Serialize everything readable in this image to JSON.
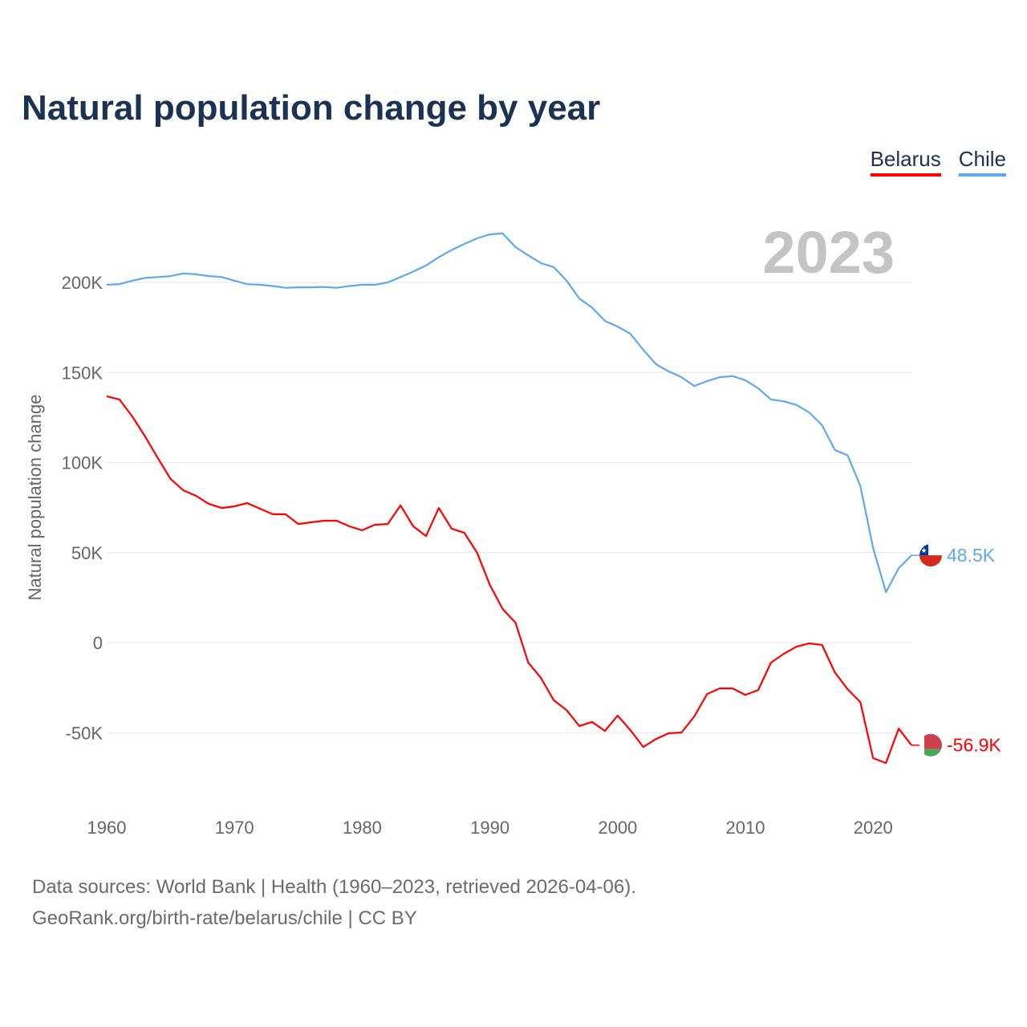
{
  "title": "Natural population change by year",
  "footer": {
    "line1": "Data sources: World Bank | Health (1960–2023, retrieved 2026-04-06).",
    "line2": "GeoRank.org/birth-rate/belarus/chile | CC BY"
  },
  "chart_data": {
    "type": "line",
    "title": "Natural population change by year",
    "xlabel": "",
    "ylabel": "Natural population change",
    "year_label": "2023",
    "xlim": [
      1960,
      2023
    ],
    "ylim": [
      -75000,
      235000
    ],
    "x_ticks": [
      1960,
      1970,
      1980,
      1990,
      2000,
      2010,
      2020
    ],
    "y_ticks": [
      {
        "value": 200000,
        "label": "200K"
      },
      {
        "value": 150000,
        "label": "150K"
      },
      {
        "value": 100000,
        "label": "100K"
      },
      {
        "value": 50000,
        "label": "50K"
      },
      {
        "value": 0,
        "label": "0"
      },
      {
        "value": -50000,
        "label": "-50K"
      }
    ],
    "grid": true,
    "legend_position": "top-right",
    "x_start": 1960,
    "series": [
      {
        "name": "Belarus",
        "color": "#ff0000",
        "flag": "belarus-flag-icon",
        "end_label": "-56.9K",
        "values": [
          136.8,
          135,
          125.6,
          114.5,
          102.5,
          90.9,
          84.6,
          81.5,
          77,
          74.8,
          75.7,
          77.5,
          74.4,
          71.3,
          71.3,
          65.9,
          66.8,
          67.7,
          67.7,
          64.6,
          62.4,
          65.5,
          65.9,
          76.2,
          64.6,
          59.2,
          74.8,
          63.3,
          61,
          49.9,
          32,
          18.7,
          11.1,
          -11.1,
          -19.6,
          -32,
          -37.4,
          -46.3,
          -44,
          -49,
          -40.5,
          -48.6,
          -57.9,
          -53.5,
          -50.3,
          -49.9,
          -41,
          -28.5,
          -25.4,
          -25.4,
          -29,
          -26.3,
          -11.1,
          -6.2,
          -2.2,
          -0.4,
          -1.3,
          -16.5,
          -25.8,
          -33,
          -64.1,
          -66.8,
          -47.7,
          -56.9
        ]
      },
      {
        "name": "Chile",
        "color": "#5ea9ee",
        "flag": "chile-flag-icon",
        "end_label": "48.5K",
        "values": [
          198.7,
          199,
          201,
          202.5,
          203,
          203.5,
          205,
          204.5,
          203.5,
          203,
          201,
          199,
          198.7,
          198,
          197,
          197.3,
          197.3,
          197.5,
          197,
          198,
          198.7,
          198.7,
          200,
          203,
          206,
          209.4,
          214,
          218,
          221.4,
          224.5,
          226.7,
          227.2,
          219.6,
          215,
          210.7,
          208.5,
          201,
          191,
          186,
          178.6,
          175.5,
          171.5,
          162.6,
          154.6,
          150.6,
          147.4,
          142.5,
          145.2,
          147.4,
          148,
          145.7,
          141.2,
          135,
          134,
          132,
          127.8,
          120.7,
          107,
          104,
          87,
          52.6,
          28,
          41.4,
          48.5
        ]
      }
    ],
    "value_units": "thousands"
  }
}
